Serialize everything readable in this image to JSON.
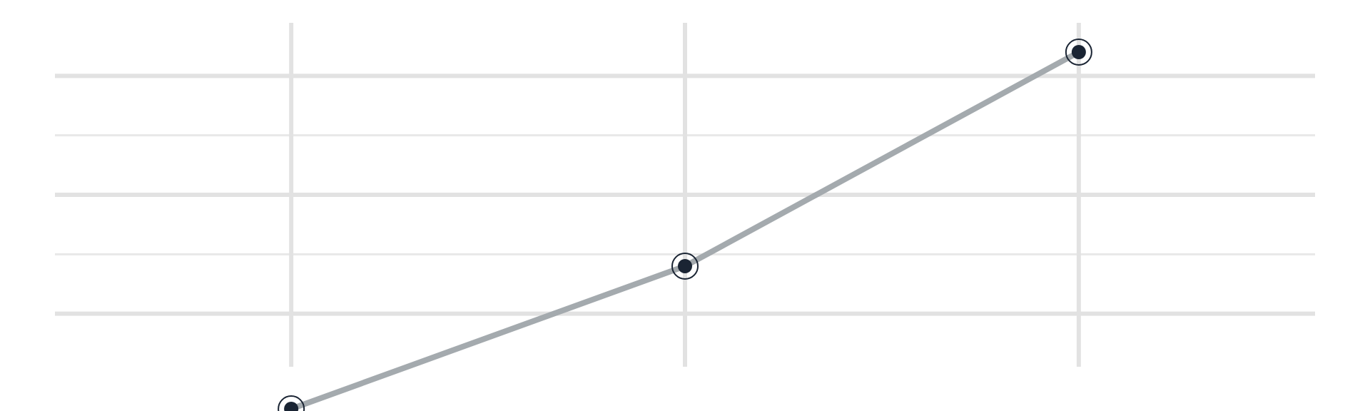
{
  "chart_data": {
    "type": "line",
    "title": "",
    "xlabel": "",
    "ylabel": "",
    "x": [
      1,
      2,
      3
    ],
    "series": [
      {
        "values": [
          -0.6,
          1.8,
          5.4
        ]
      }
    ],
    "xlim": [
      0.4,
      3.6
    ],
    "ylim": [
      0,
      6
    ],
    "yticks": [
      0,
      1,
      2,
      3,
      4,
      5,
      6
    ],
    "grid": true,
    "legend": "none",
    "colors": {
      "line": "#a4aaae",
      "marker_fill": "#1a2433",
      "marker_ring": "#1a2433",
      "grid_major": "#e2e2e2",
      "grid_minor": "#e8e8e8"
    }
  }
}
